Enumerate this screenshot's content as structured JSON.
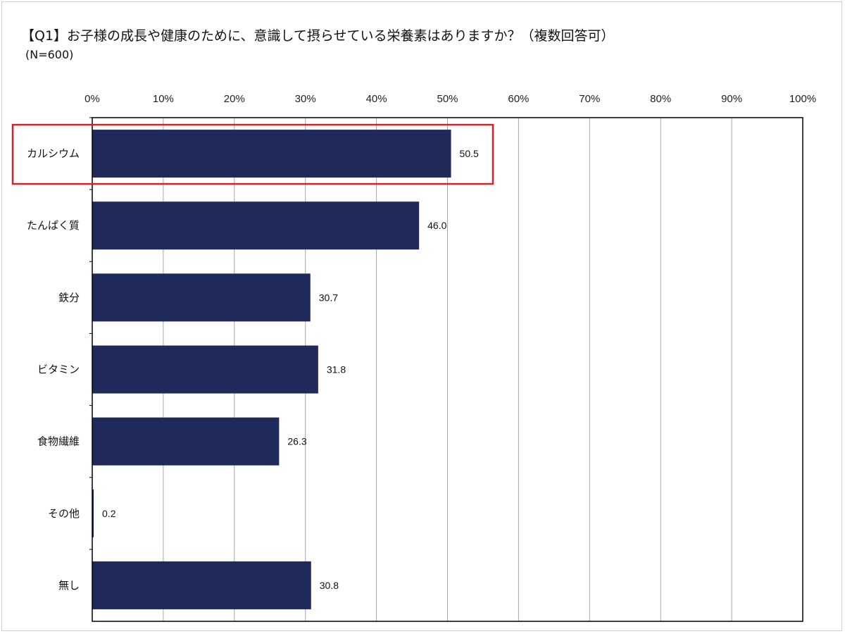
{
  "chart_data": {
    "type": "bar",
    "orientation": "horizontal",
    "title": "【Q1】お子様の成長や健康のために、意識して摂らせている栄養素はありますか？（複数回答可）",
    "subtitle": "(N=600)",
    "categories": [
      "カルシウム",
      "たんぱく質",
      "鉄分",
      "ビタミン",
      "食物繊維",
      "その他",
      "無し"
    ],
    "values": [
      50.5,
      46.0,
      30.7,
      31.8,
      26.3,
      0.2,
      30.8
    ],
    "value_labels": [
      "50.5",
      "46.0",
      "30.7",
      "31.8",
      "26.3",
      "0.2",
      "30.8"
    ],
    "xlim": [
      0,
      100
    ],
    "x_ticks": [
      "0%",
      "10%",
      "20%",
      "30%",
      "40%",
      "50%",
      "60%",
      "70%",
      "80%",
      "90%",
      "100%"
    ],
    "x_axis_position": "top",
    "grid": true,
    "highlight_category": "カルシウム",
    "colors": {
      "bar": "#1f2a5a",
      "highlight_box": "#d0242b",
      "grid": "#a6a6a6",
      "axis": "#000000"
    }
  }
}
